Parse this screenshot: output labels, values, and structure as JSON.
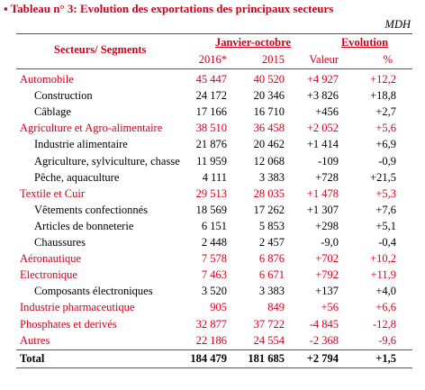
{
  "header": {
    "title": "▪ Tableau n° 3: Evolution des exportations des principaux secteurs",
    "unit": "MDH"
  },
  "table": {
    "columns": {
      "label": "Secteurs/ Segments",
      "group1": "Janvier-octobre",
      "group2": "Evolution",
      "sub": [
        "2016*",
        "2015",
        "Valeur",
        "%"
      ]
    },
    "sectors": [
      {
        "cells": [
          "Automobile",
          "45 447",
          "40 520",
          "+4 927",
          "+12,2"
        ],
        "segments": [
          [
            "Construction",
            "24 172",
            "20 346",
            "+3 826",
            "+18,8"
          ],
          [
            "Câblage",
            "17 166",
            "16 710",
            "+456",
            "+2,7"
          ]
        ]
      },
      {
        "cells": [
          "Agriculture et Agro-alimentaire",
          "38 510",
          "36 458",
          "+2 052",
          "+5,6"
        ],
        "segments": [
          [
            "Industrie alimentaire",
            "21 876",
            "20 462",
            "+1 414",
            "+6,9"
          ],
          [
            "Agriculture, sylviculture, chasse",
            "11 959",
            "12 068",
            "-109",
            "-0,9"
          ],
          [
            "Pêche, aquaculture",
            "4 111",
            "3 383",
            "+728",
            "+21,5"
          ]
        ]
      },
      {
        "cells": [
          "Textile et Cuir",
          "29 513",
          "28 035",
          "+1 478",
          "+5,3"
        ],
        "segments": [
          [
            "Vêtements confectionnés",
            "18 569",
            "17 262",
            "+1 307",
            "+7,6"
          ],
          [
            "Articles de bonneterie",
            "6 151",
            "5 853",
            "+298",
            "+5,1"
          ],
          [
            "Chaussures",
            "2 448",
            "2 457",
            "-9,0",
            "-0,4"
          ]
        ]
      },
      {
        "cells": [
          "Aéronautique",
          "7 578",
          "6 876",
          "+702",
          "+10,2"
        ],
        "segments": []
      },
      {
        "cells": [
          "Electronique",
          "7 463",
          "6 671",
          "+792",
          "+11,9"
        ],
        "segments": [
          [
            "Composants électroniques",
            "3 520",
            "3 383",
            "+137",
            "+4,0"
          ]
        ]
      },
      {
        "cells": [
          "Industrie pharmaceutique",
          "905",
          "849",
          "+56",
          "+6,6"
        ],
        "segments": []
      },
      {
        "cells": [
          "Phosphates et derivés",
          "32 877",
          "37 722",
          "-4 845",
          "-12,8"
        ],
        "segments": []
      },
      {
        "cells": [
          "Autres",
          "22 186",
          "24 554",
          "-2 368",
          "-9,6"
        ],
        "segments": []
      }
    ],
    "total": [
      "Total",
      "184 479",
      "181 685",
      "+2 794",
      "+1,5"
    ]
  }
}
